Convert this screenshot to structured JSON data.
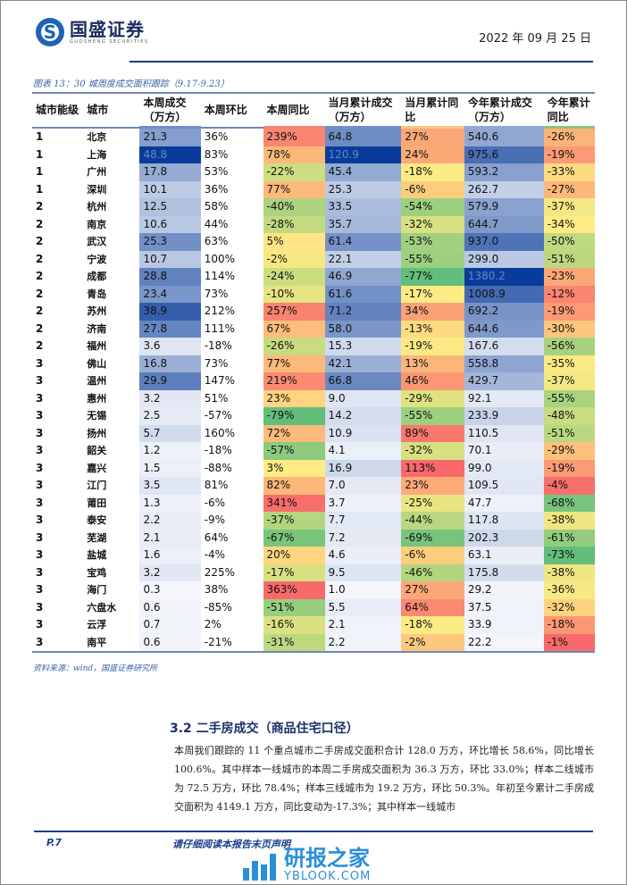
{
  "header": {
    "logo_cn": "国盛证券",
    "logo_en": "GUOSHENG SECURITIES",
    "date": "2022 年 09 月 25 日"
  },
  "figure": {
    "caption": "图表 13：30 城周度成交面积跟踪（9.17-9.23）",
    "source": "资料来源：wind，国盛证券研究所"
  },
  "table": {
    "columns": [
      "城市能级",
      "城市",
      "本周成交（万方）",
      "本周环比",
      "本周同比",
      "当月累计成交（万方）",
      "当月累计同比",
      "今年累计成交（万方）",
      "今年累计同比"
    ],
    "rows": [
      [
        "1",
        "北京",
        "21.3",
        "36%",
        "239%",
        "64.8",
        "27%",
        "540.6",
        "-26%"
      ],
      [
        "1",
        "上海",
        "48.8",
        "83%",
        "78%",
        "120.9",
        "24%",
        "975.6",
        "-19%"
      ],
      [
        "1",
        "广州",
        "17.8",
        "53%",
        "-22%",
        "45.4",
        "-18%",
        "593.2",
        "-33%"
      ],
      [
        "1",
        "深圳",
        "10.1",
        "36%",
        "77%",
        "25.3",
        "-6%",
        "262.7",
        "-27%"
      ],
      [
        "2",
        "杭州",
        "12.5",
        "58%",
        "-40%",
        "33.5",
        "-54%",
        "579.9",
        "-37%"
      ],
      [
        "2",
        "南京",
        "10.6",
        "44%",
        "-28%",
        "35.7",
        "-32%",
        "644.7",
        "-34%"
      ],
      [
        "2",
        "武汉",
        "25.3",
        "63%",
        "5%",
        "61.4",
        "-53%",
        "937.0",
        "-50%"
      ],
      [
        "2",
        "宁波",
        "10.7",
        "100%",
        "-2%",
        "22.1",
        "-55%",
        "299.0",
        "-51%"
      ],
      [
        "2",
        "成都",
        "28.8",
        "114%",
        "-24%",
        "46.9",
        "-77%",
        "1380.2",
        "-23%"
      ],
      [
        "2",
        "青岛",
        "23.4",
        "73%",
        "-10%",
        "61.6",
        "-17%",
        "1008.9",
        "-12%"
      ],
      [
        "2",
        "苏州",
        "38.9",
        "212%",
        "257%",
        "71.2",
        "34%",
        "692.2",
        "-19%"
      ],
      [
        "2",
        "济南",
        "27.8",
        "111%",
        "67%",
        "58.0",
        "-13%",
        "644.6",
        "-30%"
      ],
      [
        "2",
        "福州",
        "3.6",
        "-18%",
        "-26%",
        "15.3",
        "-19%",
        "167.6",
        "-56%"
      ],
      [
        "3",
        "佛山",
        "16.8",
        "73%",
        "77%",
        "42.1",
        "13%",
        "558.8",
        "-35%"
      ],
      [
        "3",
        "温州",
        "29.9",
        "147%",
        "219%",
        "66.8",
        "46%",
        "429.7",
        "-37%"
      ],
      [
        "3",
        "惠州",
        "3.2",
        "51%",
        "23%",
        "9.0",
        "-29%",
        "92.1",
        "-55%"
      ],
      [
        "3",
        "无锡",
        "2.5",
        "-57%",
        "-79%",
        "14.2",
        "-55%",
        "233.9",
        "-48%"
      ],
      [
        "3",
        "扬州",
        "5.7",
        "160%",
        "72%",
        "10.9",
        "89%",
        "110.5",
        "-51%"
      ],
      [
        "3",
        "韶关",
        "1.2",
        "-18%",
        "-57%",
        "4.1",
        "-32%",
        "70.1",
        "-29%"
      ],
      [
        "3",
        "嘉兴",
        "1.5",
        "-88%",
        "3%",
        "16.9",
        "113%",
        "99.0",
        "-19%"
      ],
      [
        "3",
        "江门",
        "3.5",
        "81%",
        "82%",
        "7.0",
        "23%",
        "109.5",
        "-4%"
      ],
      [
        "3",
        "莆田",
        "1.3",
        "-6%",
        "341%",
        "3.7",
        "-25%",
        "47.7",
        "-68%"
      ],
      [
        "3",
        "泰安",
        "2.2",
        "-9%",
        "-37%",
        "7.7",
        "-44%",
        "117.8",
        "-38%"
      ],
      [
        "3",
        "芜湖",
        "2.1",
        "64%",
        "-67%",
        "7.2",
        "-69%",
        "202.3",
        "-61%"
      ],
      [
        "3",
        "盐城",
        "1.6",
        "-4%",
        "20%",
        "4.6",
        "-6%",
        "63.1",
        "-73%"
      ],
      [
        "3",
        "宝鸡",
        "3.2",
        "225%",
        "-17%",
        "9.5",
        "-46%",
        "175.8",
        "-38%"
      ],
      [
        "3",
        "海门",
        "0.3",
        "38%",
        "363%",
        "1.0",
        "27%",
        "29.2",
        "-36%"
      ],
      [
        "3",
        "六盘水",
        "0.6",
        "-85%",
        "-51%",
        "5.5",
        "64%",
        "37.5",
        "-32%"
      ],
      [
        "3",
        "云浮",
        "0.7",
        "2%",
        "-16%",
        "2.1",
        "-18%",
        "33.9",
        "-18%"
      ],
      [
        "3",
        "南平",
        "0.6",
        "-21%",
        "-31%",
        "2.2",
        "-2%",
        "22.2",
        "-1%"
      ]
    ],
    "heat_colors": {
      "blue_low": "#f4f6fb",
      "blue_high": "#083b9a",
      "red": "#f8696b",
      "yellow": "#ffeb84",
      "green": "#63be7b"
    }
  },
  "section": {
    "number": "3.2",
    "title": "二手房成交（商品住宅口径）",
    "paragraph": "本周我们跟踪的 11 个重点城市二手房成交面积合计 128.0 万方，环比增长 58.6%，同比增长 100.6%。其中样本一线城市的本周二手房成交面积为 36.3 万方，环比 33.0%；样本二线城市为 72.5 万方，环比 78.4%；样本三线城市为 19.2 万方，环比 50.3%。年初至今累计二手房成交面积为 4149.1 万方，同比变动为-17.3%；其中样本一线城市"
  },
  "footer": {
    "page": "P.7",
    "disclaimer": "请仔细阅读本报告末页声明"
  },
  "watermark": {
    "cn": "研报之家",
    "en": "YBLOOK.COM"
  }
}
